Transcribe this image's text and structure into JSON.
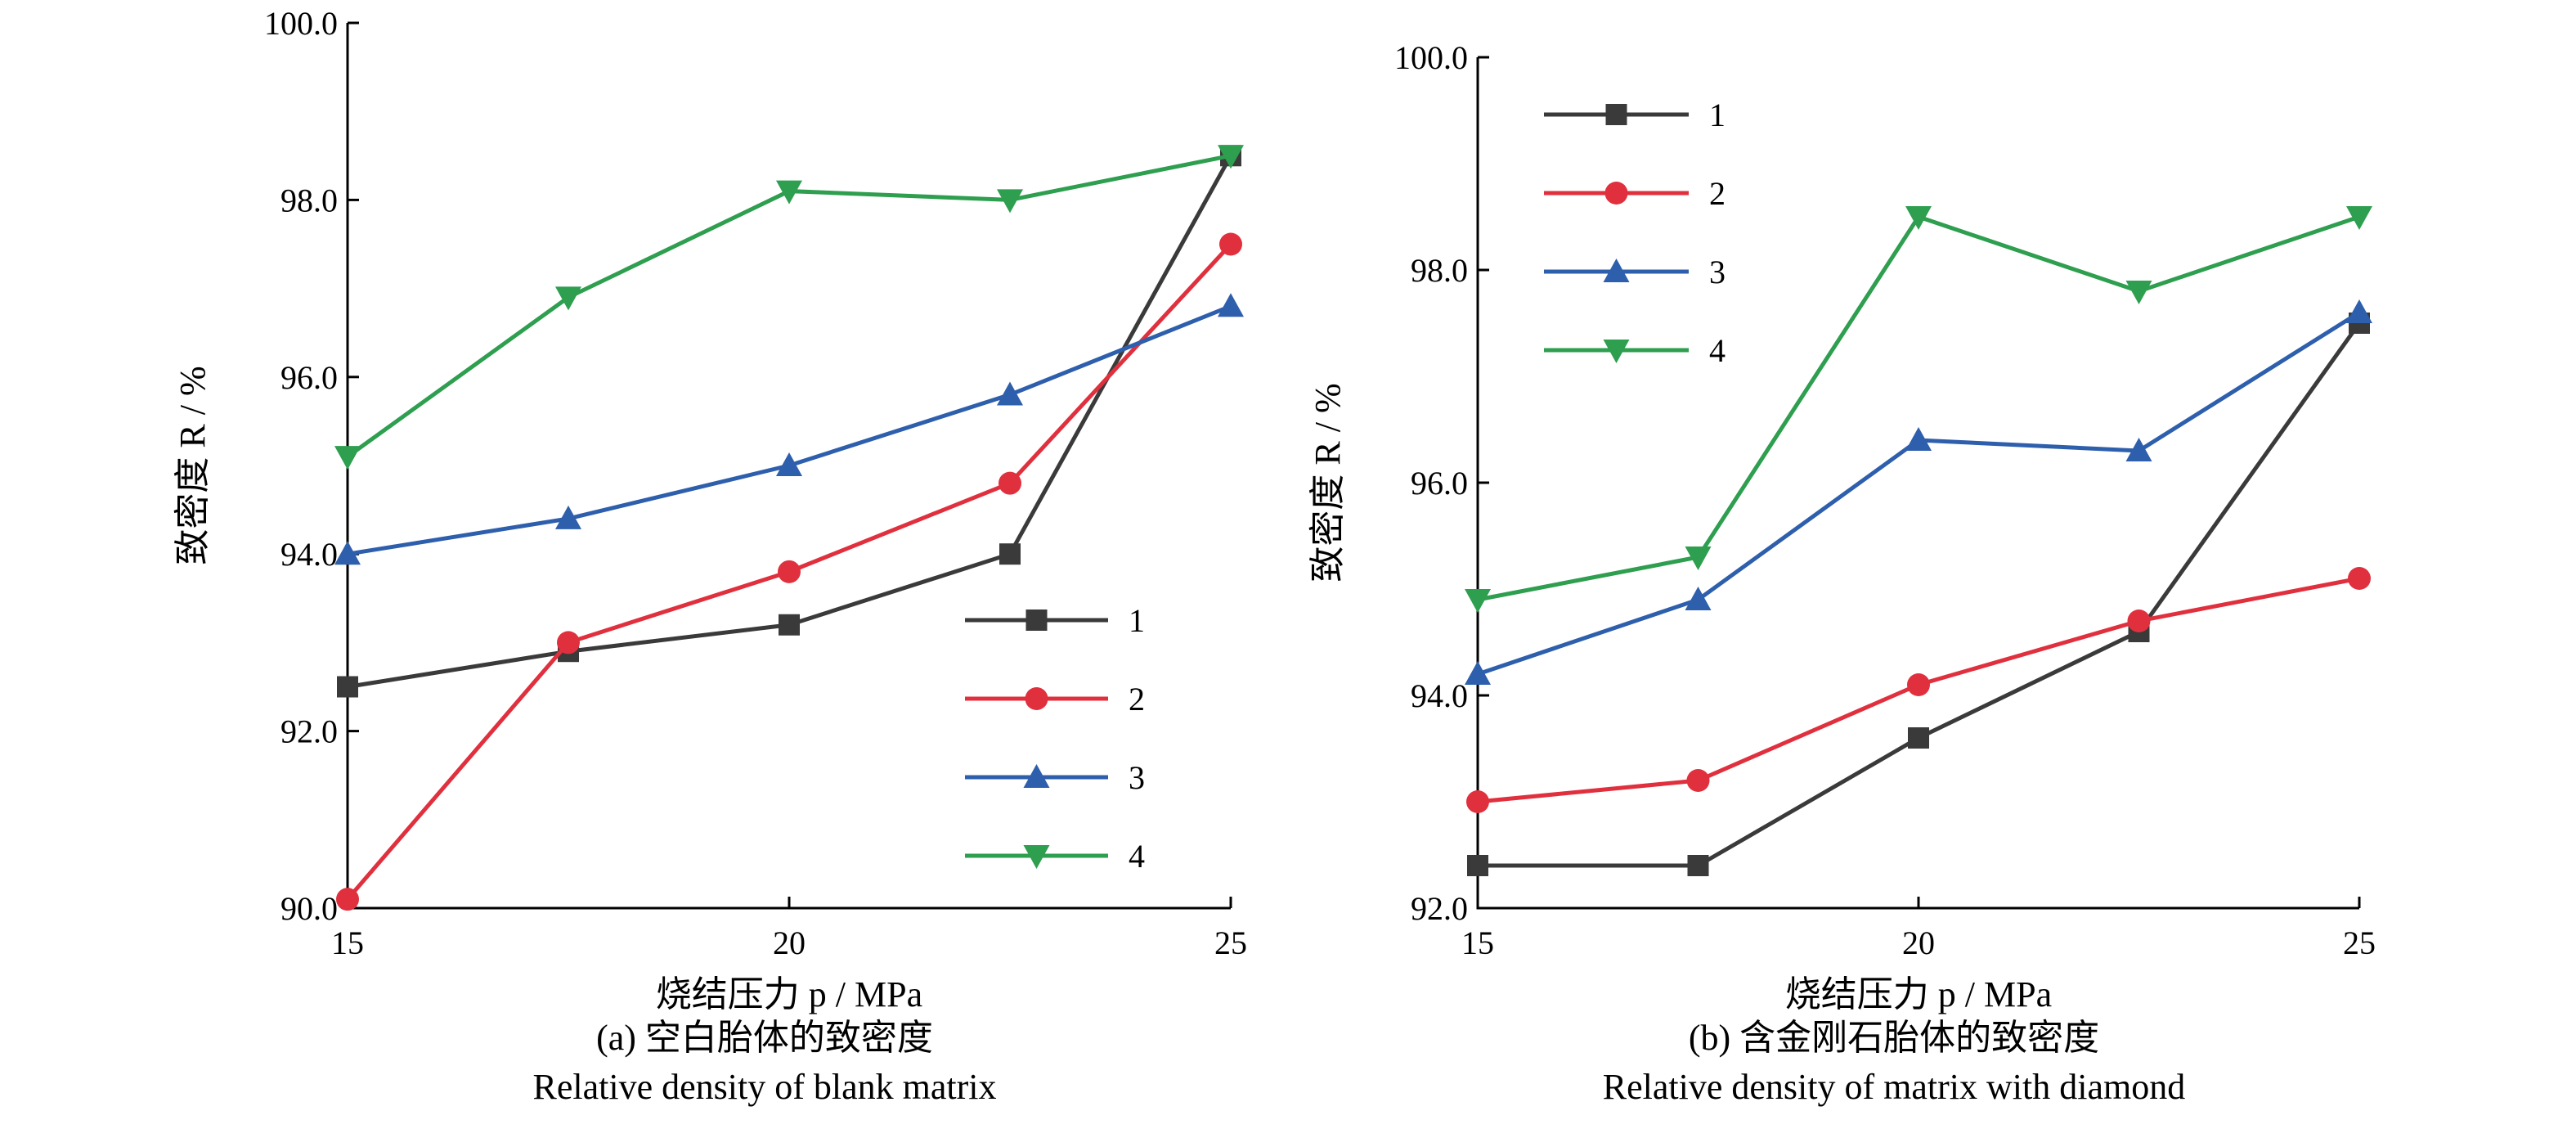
{
  "chart_data": [
    {
      "type": "line",
      "xlabel": "烧结压力 p / MPa",
      "ylabel": "致密度 R / %",
      "caption_cn": "(a) 空白胎体的致密度",
      "caption_en": "Relative density of blank matrix",
      "x": [
        15,
        17.5,
        20,
        22.5,
        25
      ],
      "xticks": [
        "15",
        "20",
        "25"
      ],
      "xlim": [
        15,
        25
      ],
      "ylim": [
        90,
        100
      ],
      "yticks": [
        "90.0",
        "92.0",
        "94.0",
        "96.0",
        "98.0",
        "100.0"
      ],
      "grid": false,
      "legend_position": "lower-right",
      "series": [
        {
          "name": "1",
          "color": "#3a3a3a",
          "marker": "square",
          "values": [
            92.5,
            92.9,
            93.2,
            94.0,
            98.5
          ]
        },
        {
          "name": "2",
          "color": "#e0303e",
          "marker": "circle",
          "values": [
            90.1,
            93.0,
            93.8,
            94.8,
            97.5
          ]
        },
        {
          "name": "3",
          "color": "#2e5fac",
          "marker": "triangle-up",
          "values": [
            94.0,
            94.4,
            95.0,
            95.8,
            96.8
          ]
        },
        {
          "name": "4",
          "color": "#2e9e4f",
          "marker": "triangle-down",
          "values": [
            95.1,
            96.9,
            98.1,
            98.0,
            98.5
          ]
        }
      ]
    },
    {
      "type": "line",
      "xlabel": "烧结压力 p / MPa",
      "ylabel": "致密度 R / %",
      "caption_cn": "(b) 含金刚石胎体的致密度",
      "caption_en": "Relative density of matrix with diamond",
      "x": [
        15,
        17.5,
        20,
        22.5,
        25
      ],
      "xticks": [
        "15",
        "20",
        "25"
      ],
      "xlim": [
        15,
        25
      ],
      "ylim": [
        92,
        100
      ],
      "yticks": [
        "92.0",
        "94.0",
        "96.0",
        "98.0",
        "100.0"
      ],
      "grid": false,
      "legend_position": "top-left",
      "series": [
        {
          "name": "1",
          "color": "#3a3a3a",
          "marker": "square",
          "values": [
            92.4,
            92.4,
            93.6,
            94.6,
            97.5
          ]
        },
        {
          "name": "2",
          "color": "#e0303e",
          "marker": "circle",
          "values": [
            93.0,
            93.2,
            94.1,
            94.7,
            95.1
          ]
        },
        {
          "name": "3",
          "color": "#2e5fac",
          "marker": "triangle-up",
          "values": [
            94.2,
            94.9,
            96.4,
            96.3,
            97.6
          ]
        },
        {
          "name": "4",
          "color": "#2e9e4f",
          "marker": "triangle-down",
          "values": [
            94.9,
            95.3,
            98.5,
            97.8,
            98.5
          ]
        }
      ]
    }
  ]
}
